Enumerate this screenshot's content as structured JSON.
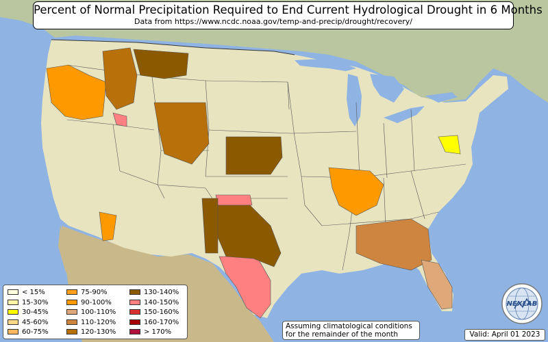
{
  "title": {
    "main": "Percent of Normal Precipitation Required to End Current Hydrological Drought in 6 Months",
    "source": "Data from https://www.ncdc.noaa.gov/temp-and-precip/drought/recovery/"
  },
  "legend": {
    "items": [
      {
        "label": "< 15%",
        "color": "#ffffe0"
      },
      {
        "label": "15-30%",
        "color": "#fff5a8"
      },
      {
        "label": "30-45%",
        "color": "#ffff00"
      },
      {
        "label": "45-60%",
        "color": "#ffd98a"
      },
      {
        "label": "60-75%",
        "color": "#ffb860"
      },
      {
        "label": "75-90%",
        "color": "#ff9f1c"
      },
      {
        "label": "90-100%",
        "color": "#ff9900"
      },
      {
        "label": "100-110%",
        "color": "#dea879"
      },
      {
        "label": "110-120%",
        "color": "#cd853f"
      },
      {
        "label": "120-130%",
        "color": "#b8700a"
      },
      {
        "label": "130-140%",
        "color": "#8b5a00"
      },
      {
        "label": "140-150%",
        "color": "#ff8080"
      },
      {
        "label": "150-160%",
        "color": "#d93030"
      },
      {
        "label": "160-170%",
        "color": "#a80000"
      },
      {
        "label": "> 170%",
        "color": "#b0103c"
      }
    ]
  },
  "note": {
    "line1": "Assuming climatological conditions",
    "line2": "for the remainder of the month"
  },
  "valid": "Valid: April 01 2023",
  "logo": {
    "text": "NEXLAB",
    "icon": "globe-logo-icon"
  },
  "regions": [
    {
      "name": "pacific-northwest-coast",
      "category": "90-100%"
    },
    {
      "name": "northern-rockies",
      "category": "120-130%"
    },
    {
      "name": "montana-plains",
      "category": "130-140%"
    },
    {
      "name": "idaho-southwest",
      "category": "140-150%"
    },
    {
      "name": "wyoming-colorado",
      "category": "120-130%"
    },
    {
      "name": "nebraska-kansas",
      "category": "130-140%"
    },
    {
      "name": "oklahoma-panhandle",
      "category": "140-150%"
    },
    {
      "name": "texas-south-central",
      "category": "140-150%"
    },
    {
      "name": "texas-central",
      "category": "130-140%"
    },
    {
      "name": "new-mexico-east",
      "category": "130-140%"
    },
    {
      "name": "arizona-south",
      "category": "90-100%"
    },
    {
      "name": "southeast",
      "category": "110-120%"
    },
    {
      "name": "florida",
      "category": "100-110%"
    },
    {
      "name": "mid-atlantic",
      "category": "30-45%"
    },
    {
      "name": "mississippi-valley",
      "category": "90-100%"
    }
  ]
}
